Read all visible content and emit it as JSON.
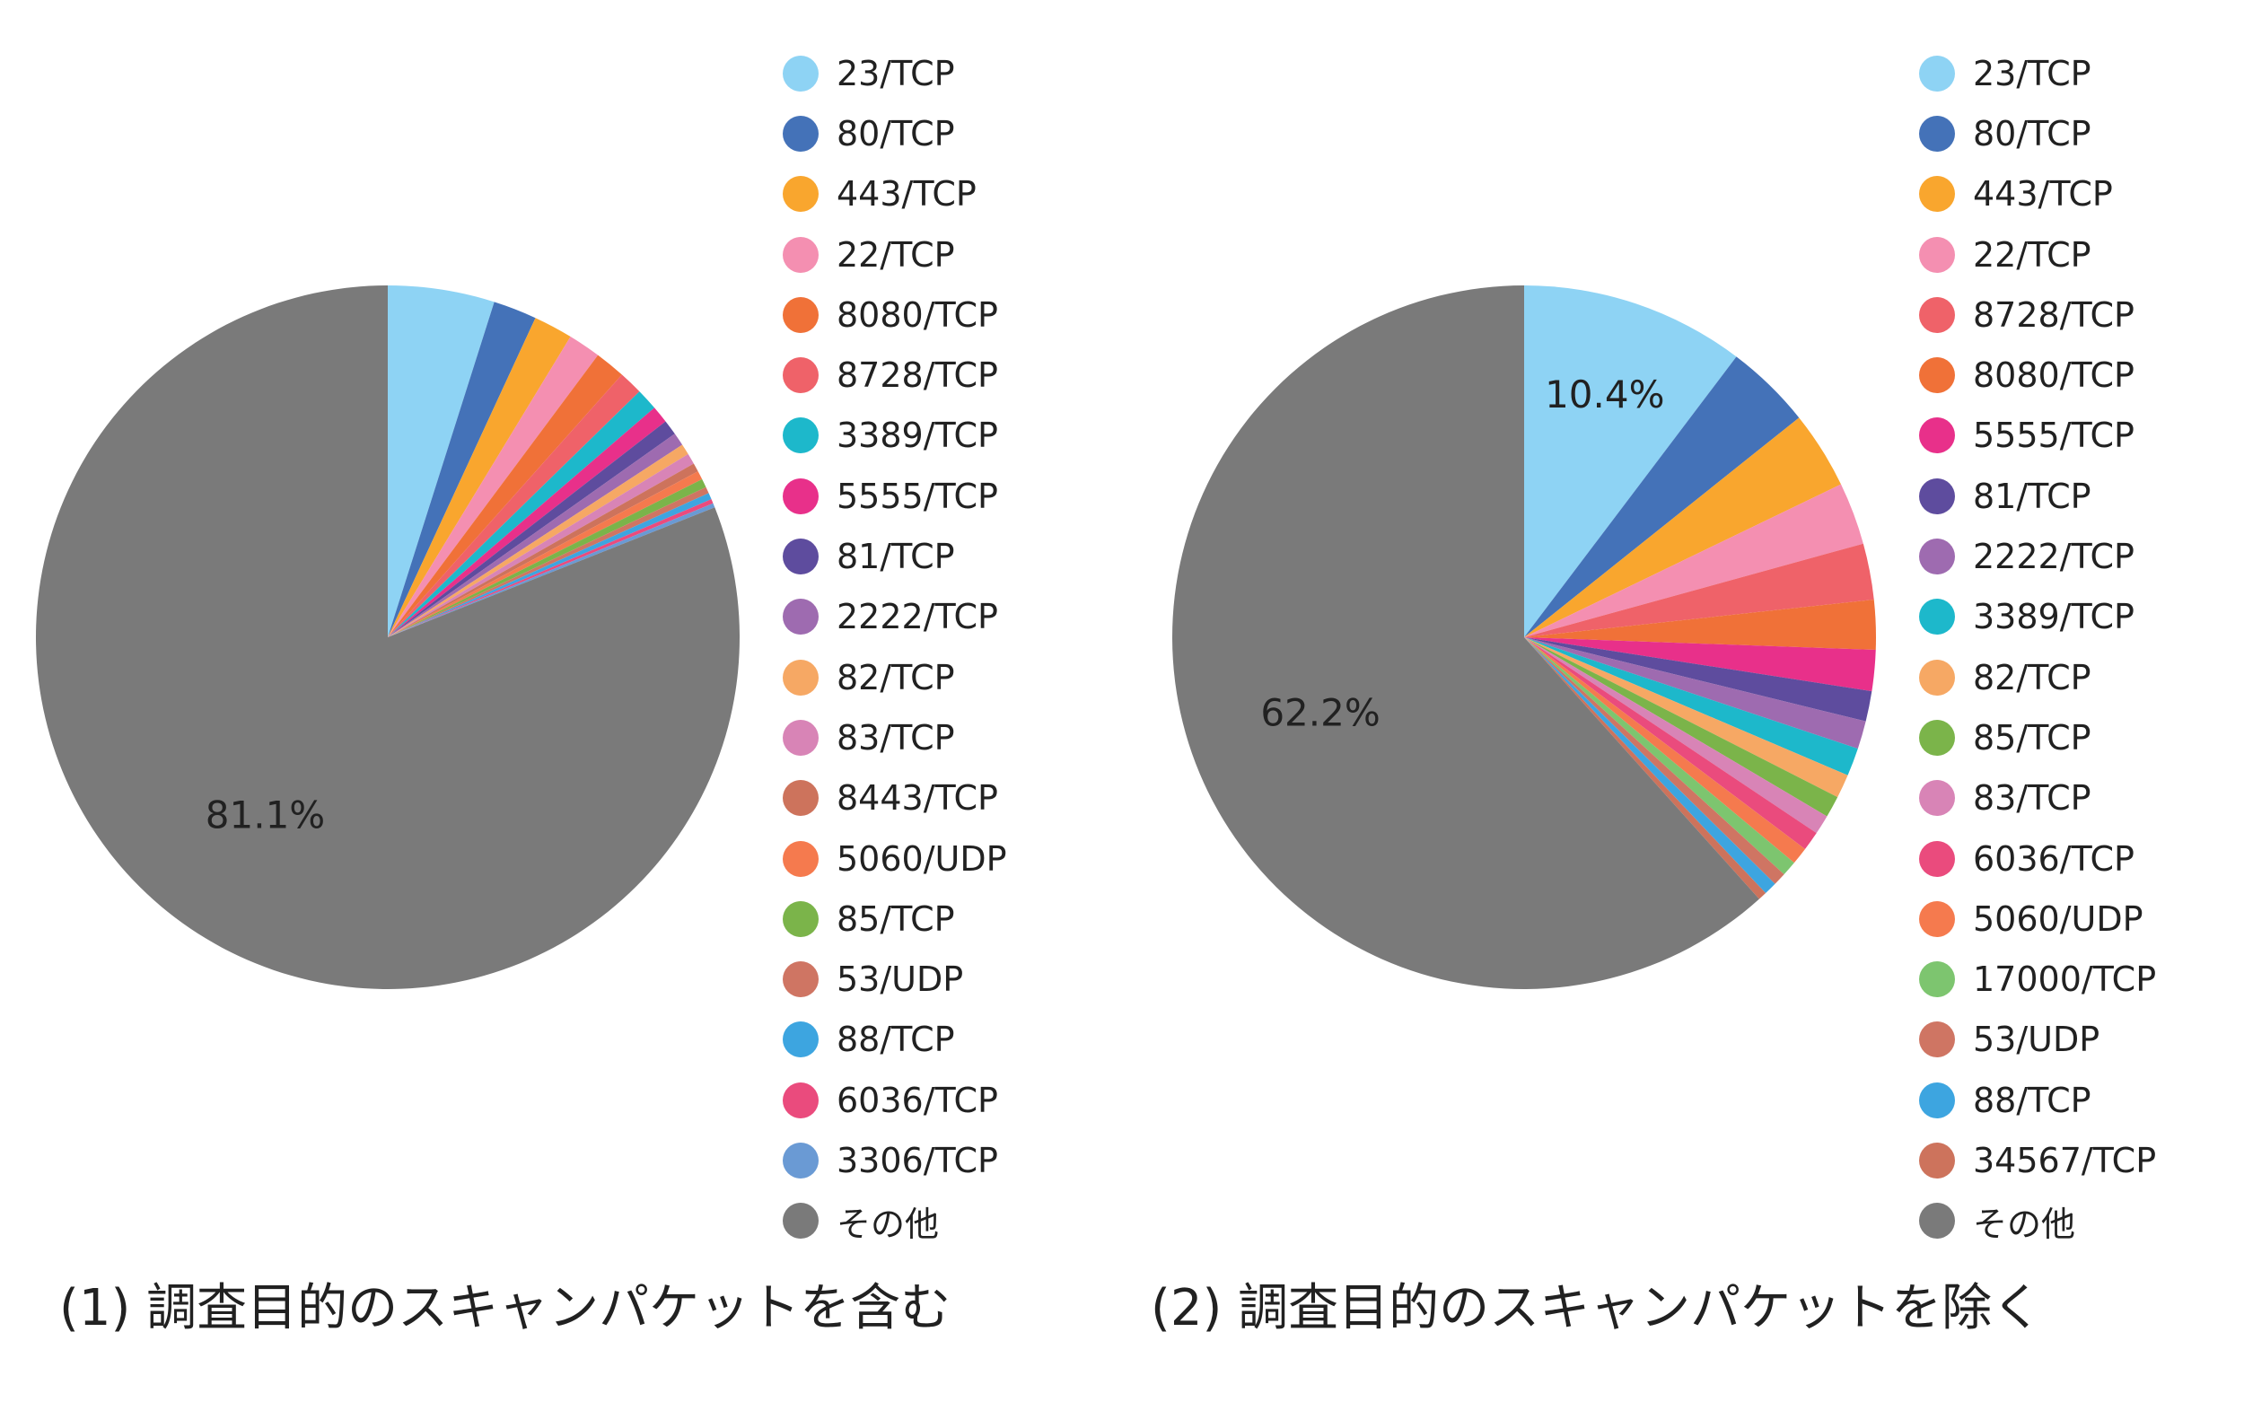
{
  "chart_data": [
    {
      "type": "pie",
      "caption": "(1) 調査目的のスキャンパケットを含む",
      "percent_label": {
        "text": "81.1%",
        "category": "その他"
      },
      "slices": [
        {
          "label": "23/TCP",
          "value": 4.9,
          "color": "#8ed3f4"
        },
        {
          "label": "80/TCP",
          "value": 2.0,
          "color": "#4472b8"
        },
        {
          "label": "443/TCP",
          "value": 1.8,
          "color": "#f9a62e"
        },
        {
          "label": "22/TCP",
          "value": 1.5,
          "color": "#f48fb1"
        },
        {
          "label": "8080/TCP",
          "value": 1.4,
          "color": "#f07138"
        },
        {
          "label": "8728/TCP",
          "value": 1.1,
          "color": "#ef6269"
        },
        {
          "label": "3389/TCP",
          "value": 1.0,
          "color": "#1db8cb"
        },
        {
          "label": "5555/TCP",
          "value": 0.8,
          "color": "#e8308a"
        },
        {
          "label": "81/TCP",
          "value": 0.7,
          "color": "#5e4c9e"
        },
        {
          "label": "2222/TCP",
          "value": 0.6,
          "color": "#9e6bb0"
        },
        {
          "label": "82/TCP",
          "value": 0.5,
          "color": "#f6a864"
        },
        {
          "label": "83/TCP",
          "value": 0.5,
          "color": "#d884b6"
        },
        {
          "label": "8443/TCP",
          "value": 0.4,
          "color": "#cd735c"
        },
        {
          "label": "5060/UDP",
          "value": 0.4,
          "color": "#f57a4e"
        },
        {
          "label": "85/TCP",
          "value": 0.4,
          "color": "#7bb44a"
        },
        {
          "label": "53/UDP",
          "value": 0.3,
          "color": "#cf7563"
        },
        {
          "label": "88/TCP",
          "value": 0.3,
          "color": "#3da5e0"
        },
        {
          "label": "6036/TCP",
          "value": 0.2,
          "color": "#ea4b7d"
        },
        {
          "label": "3306/TCP",
          "value": 0.2,
          "color": "#6a9ad4"
        },
        {
          "label": "その他",
          "value": 81.1,
          "color": "#7a7a7a"
        }
      ]
    },
    {
      "type": "pie",
      "caption": "(2) 調査目的のスキャンパケットを除く",
      "percent_labels": [
        {
          "text": "10.4%",
          "category": "23/TCP"
        },
        {
          "text": "62.2%",
          "category": "その他"
        }
      ],
      "slices": [
        {
          "label": "23/TCP",
          "value": 10.4,
          "color": "#8ed3f4"
        },
        {
          "label": "80/TCP",
          "value": 4.0,
          "color": "#4472b8"
        },
        {
          "label": "443/TCP",
          "value": 3.6,
          "color": "#f9a62e"
        },
        {
          "label": "22/TCP",
          "value": 2.9,
          "color": "#f48fb1"
        },
        {
          "label": "8728/TCP",
          "value": 2.6,
          "color": "#ef6269"
        },
        {
          "label": "8080/TCP",
          "value": 2.3,
          "color": "#f07138"
        },
        {
          "label": "5555/TCP",
          "value": 1.9,
          "color": "#e8308a"
        },
        {
          "label": "81/TCP",
          "value": 1.4,
          "color": "#5e4c9e"
        },
        {
          "label": "2222/TCP",
          "value": 1.3,
          "color": "#9e6bb0"
        },
        {
          "label": "3389/TCP",
          "value": 1.3,
          "color": "#1db8cb"
        },
        {
          "label": "82/TCP",
          "value": 1.1,
          "color": "#f6a864"
        },
        {
          "label": "85/TCP",
          "value": 1.0,
          "color": "#7bb44a"
        },
        {
          "label": "83/TCP",
          "value": 0.9,
          "color": "#d884b6"
        },
        {
          "label": "6036/TCP",
          "value": 0.9,
          "color": "#ea4b7d"
        },
        {
          "label": "5060/UDP",
          "value": 0.8,
          "color": "#f57a4e"
        },
        {
          "label": "17000/TCP",
          "value": 0.7,
          "color": "#7dc56f"
        },
        {
          "label": "53/UDP",
          "value": 0.6,
          "color": "#cf7563"
        },
        {
          "label": "88/TCP",
          "value": 0.6,
          "color": "#3da5e0"
        },
        {
          "label": "34567/TCP",
          "value": 0.4,
          "color": "#cd735c"
        },
        {
          "label": "その他",
          "value": 62.2,
          "color": "#7a7a7a"
        }
      ]
    }
  ]
}
